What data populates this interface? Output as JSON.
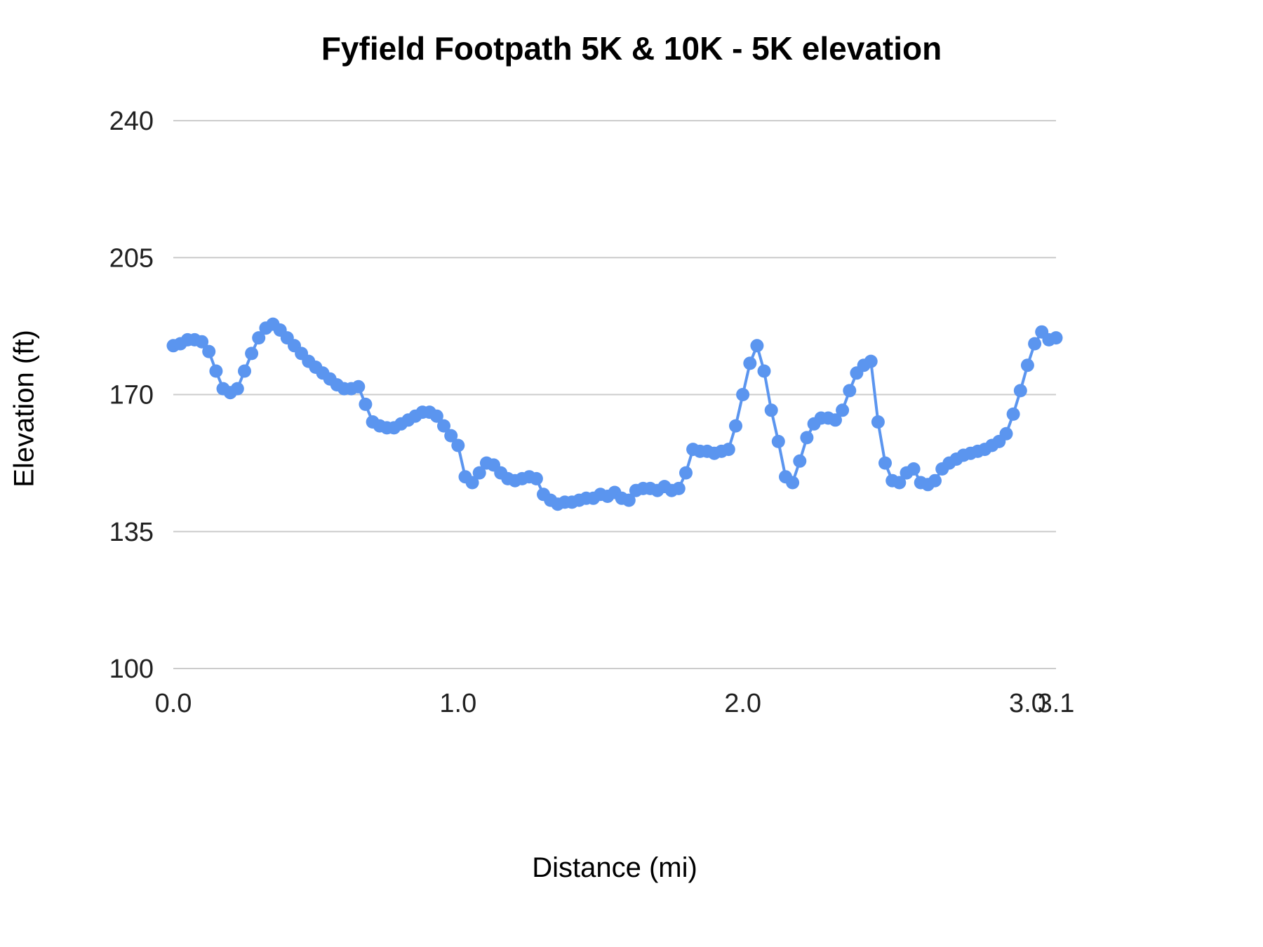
{
  "chart_data": {
    "type": "line",
    "title": "Fyfield Footpath 5K & 10K - 5K elevation",
    "xlabel": "Distance (mi)",
    "ylabel": "Elevation (ft)",
    "xlim": [
      0,
      3.1
    ],
    "ylim": [
      100,
      240
    ],
    "x_ticks": [
      0.0,
      1.0,
      2.0,
      3.0,
      3.1
    ],
    "x_tick_labels": [
      "0.0",
      "1.0",
      "2.0",
      "3.0",
      "3.1"
    ],
    "y_ticks": [
      100,
      135,
      170,
      205,
      240
    ],
    "y_tick_labels": [
      "100",
      "135",
      "170",
      "205",
      "240"
    ],
    "grid": "horizontal",
    "legend": "none",
    "colors": {
      "series": "#5b95ef",
      "gridline": "#cccccc",
      "tick_label": "#212121"
    },
    "series": [
      {
        "name": "5K elevation",
        "x": [
          0,
          0.025,
          0.05,
          0.075,
          0.1,
          0.125,
          0.15,
          0.175,
          0.2,
          0.225,
          0.25,
          0.275,
          0.3,
          0.325,
          0.35,
          0.375,
          0.4,
          0.425,
          0.45,
          0.475,
          0.5,
          0.525,
          0.55,
          0.575,
          0.6,
          0.625,
          0.65,
          0.675,
          0.7,
          0.725,
          0.75,
          0.775,
          0.8,
          0.825,
          0.85,
          0.875,
          0.9,
          0.925,
          0.95,
          0.975,
          1,
          1.025,
          1.05,
          1.075,
          1.1,
          1.125,
          1.15,
          1.175,
          1.2,
          1.225,
          1.25,
          1.275,
          1.3,
          1.325,
          1.35,
          1.375,
          1.4,
          1.425,
          1.45,
          1.475,
          1.5,
          1.525,
          1.55,
          1.575,
          1.6,
          1.625,
          1.65,
          1.675,
          1.7,
          1.725,
          1.75,
          1.775,
          1.8,
          1.825,
          1.85,
          1.875,
          1.9,
          1.925,
          1.95,
          1.975,
          2,
          2.025,
          2.05,
          2.075,
          2.1,
          2.125,
          2.15,
          2.175,
          2.2,
          2.225,
          2.25,
          2.275,
          2.3,
          2.325,
          2.35,
          2.375,
          2.4,
          2.425,
          2.45,
          2.475,
          2.5,
          2.525,
          2.55,
          2.575,
          2.6,
          2.625,
          2.65,
          2.675,
          2.7,
          2.725,
          2.75,
          2.775,
          2.8,
          2.825,
          2.85,
          2.875,
          2.9,
          2.925,
          2.95,
          2.975,
          3,
          3.025,
          3.05,
          3.075,
          3.1
        ],
        "y": [
          182.5,
          183,
          184,
          184,
          183.5,
          181,
          176,
          171.5,
          170.5,
          171.5,
          176,
          180.5,
          184.5,
          187,
          188,
          186.5,
          184.5,
          182.5,
          180.5,
          178.5,
          177,
          175.5,
          174,
          172.5,
          171.5,
          171.5,
          172,
          167.5,
          163,
          162,
          161.5,
          161.5,
          162.5,
          163.5,
          164.5,
          165.5,
          165.5,
          164.5,
          162,
          159.5,
          157,
          149,
          147.5,
          150,
          152.5,
          152,
          150,
          148.5,
          148,
          148.5,
          149,
          148.5,
          144.5,
          143,
          142,
          142.5,
          142.5,
          143,
          143.5,
          143.5,
          144.5,
          144,
          145,
          143.5,
          143,
          145.5,
          146,
          146,
          145.5,
          146.5,
          145.5,
          146,
          150,
          156,
          155.5,
          155.5,
          155,
          155.5,
          156,
          162,
          170,
          178,
          182.5,
          176,
          166,
          158,
          149,
          147.5,
          153,
          159,
          162.5,
          164,
          164,
          163.5,
          166,
          171,
          175.5,
          177.5,
          178.5,
          163,
          152.5,
          148,
          147.5,
          150,
          151,
          147.5,
          147,
          148,
          151,
          152.5,
          153.5,
          154.5,
          155,
          155.5,
          156,
          157,
          158,
          160,
          165,
          171,
          177.5,
          183,
          186,
          184,
          184.5
        ]
      }
    ],
    "style": {
      "point_radius": 9.5,
      "line_width": 4
    }
  },
  "layout_note": "elevation profile line chart with point markers, horizontal gridlines only"
}
